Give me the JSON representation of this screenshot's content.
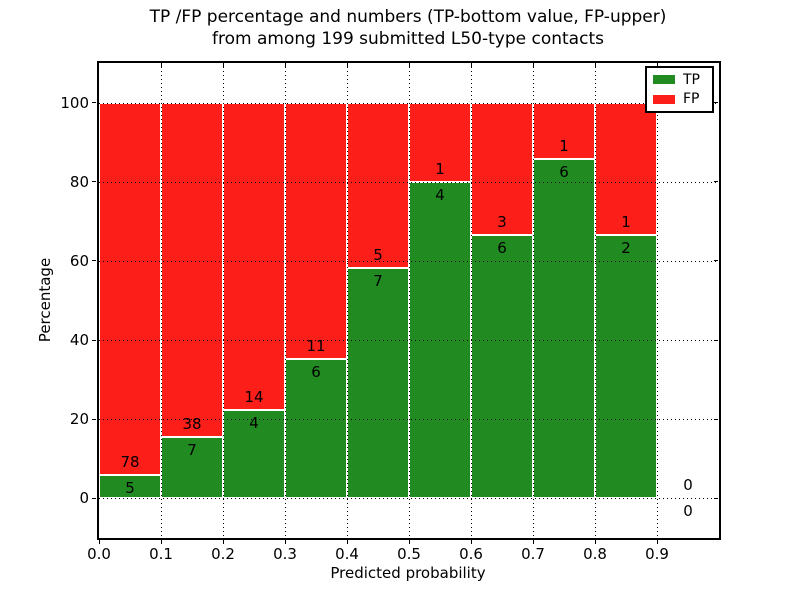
{
  "figure": {
    "title_line1": "TP /FP percentage and numbers (TP-bottom value, FP-upper)",
    "title_line2": "from among 199 submitted L50-type contacts"
  },
  "chart_data": {
    "type": "bar",
    "stacked": true,
    "units": "percent of bin total",
    "title": "TP /FP percentage and numbers (TP-bottom value, FP-upper)\nfrom among 199 submitted L50-type contacts",
    "xlabel": "Predicted probability",
    "ylabel": "Percentage",
    "xlim": [
      0.0,
      1.0
    ],
    "ylim": [
      -10,
      110
    ],
    "bin_width": 0.1,
    "xtick_labels": [
      "0.0",
      "0.1",
      "0.2",
      "0.3",
      "0.4",
      "0.5",
      "0.6",
      "0.7",
      "0.8",
      "0.9"
    ],
    "ytick_values": [
      0,
      20,
      40,
      60,
      80,
      100
    ],
    "grid": true,
    "legend_position": "upper right",
    "total_contacts": 199,
    "categories": [
      "0.0-0.1",
      "0.1-0.2",
      "0.2-0.3",
      "0.3-0.4",
      "0.4-0.5",
      "0.5-0.6",
      "0.6-0.7",
      "0.7-0.8",
      "0.8-0.9",
      "0.9-1.0"
    ],
    "series": [
      {
        "name": "TP",
        "color": "#218a21",
        "values": [
          5,
          7,
          4,
          6,
          7,
          4,
          6,
          6,
          2,
          0
        ]
      },
      {
        "name": "FP",
        "color": "#fc1e19",
        "values": [
          78,
          38,
          14,
          11,
          5,
          1,
          3,
          1,
          1,
          0
        ]
      }
    ],
    "tp_percent": [
      6.0,
      15.6,
      22.2,
      35.3,
      58.3,
      80.0,
      66.7,
      85.7,
      66.7,
      null
    ]
  },
  "legend": {
    "entries": [
      {
        "label": "TP",
        "color": "#218a21"
      },
      {
        "label": "FP",
        "color": "#fc1e19"
      }
    ]
  },
  "colors": {
    "tp": "#218a21",
    "fp": "#fc1e19",
    "frame": "#000000",
    "background": "#ffffff"
  }
}
